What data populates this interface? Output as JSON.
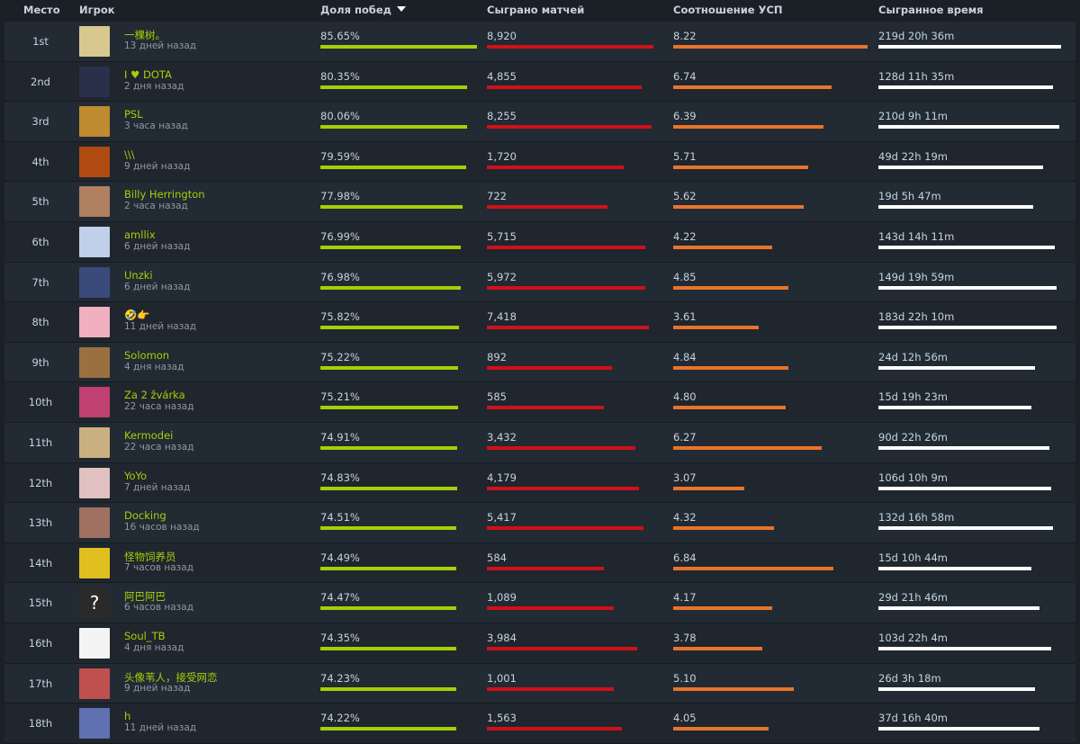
{
  "header": {
    "place": "Место",
    "player": "Игрок",
    "winrate": "Доля побед",
    "matches": "Сыграно матчей",
    "kda": "Соотношение УСП",
    "time": "Сыгранное время",
    "sort_icon": "triangle-down-icon"
  },
  "colors": {
    "win": "#a4d007",
    "matches": "#d0101a",
    "kda": "#e8742c",
    "time": "#ffffff",
    "name": "#a4d007"
  },
  "rows": [
    {
      "place": "1st",
      "name": "一棵树。",
      "seen": "13 дней назад",
      "win": "85.65%",
      "win_fill": 0.8565,
      "matches": "8,920",
      "matches_fill": 0.84,
      "kda": "8.22",
      "kda_fill": 0.98,
      "time": "219d 20h 36m",
      "time_fill": 0.93,
      "avatar": "#d8c890"
    },
    {
      "place": "2nd",
      "name": "I ♥ DOTA",
      "seen": "2 дня назад",
      "win": "80.35%",
      "win_fill": 0.8035,
      "matches": "4,855",
      "matches_fill": 0.78,
      "kda": "6.74",
      "kda_fill": 0.8,
      "time": "128d 11h 35m",
      "time_fill": 0.89,
      "avatar": "#2a2f4a"
    },
    {
      "place": "3rd",
      "name": "PSL",
      "seen": "3 часа назад",
      "win": "80.06%",
      "win_fill": 0.8006,
      "matches": "8,255",
      "matches_fill": 0.83,
      "kda": "6.39",
      "kda_fill": 0.76,
      "time": "210d 9h 11m",
      "time_fill": 0.92,
      "avatar": "#c08a30"
    },
    {
      "place": "4th",
      "name": "\\\\\\",
      "seen": "9 дней назад",
      "win": "79.59%",
      "win_fill": 0.7959,
      "matches": "1,720",
      "matches_fill": 0.69,
      "kda": "5.71",
      "kda_fill": 0.68,
      "time": "49d 22h 19m",
      "time_fill": 0.84,
      "avatar": "#b04a10"
    },
    {
      "place": "5th",
      "name": "Billy Herrington",
      "seen": "2 часа назад",
      "win": "77.98%",
      "win_fill": 0.7798,
      "matches": "722",
      "matches_fill": 0.61,
      "kda": "5.62",
      "kda_fill": 0.66,
      "time": "19d 5h 47m",
      "time_fill": 0.79,
      "avatar": "#b08060"
    },
    {
      "place": "6th",
      "name": "amllix",
      "seen": "6 дней назад",
      "win": "76.99%",
      "win_fill": 0.7699,
      "matches": "5,715",
      "matches_fill": 0.8,
      "kda": "4.22",
      "kda_fill": 0.5,
      "time": "143d 14h 11m",
      "time_fill": 0.9,
      "avatar": "#c0d0e8"
    },
    {
      "place": "7th",
      "name": "Unzki",
      "seen": "6 дней назад",
      "win": "76.98%",
      "win_fill": 0.7698,
      "matches": "5,972",
      "matches_fill": 0.8,
      "kda": "4.85",
      "kda_fill": 0.58,
      "time": "149d 19h 59m",
      "time_fill": 0.91,
      "avatar": "#3a4a7a"
    },
    {
      "place": "8th",
      "name": "🤣👉",
      "seen": "11 дней назад",
      "win": "75.82%",
      "win_fill": 0.7582,
      "matches": "7,418",
      "matches_fill": 0.82,
      "kda": "3.61",
      "kda_fill": 0.43,
      "time": "183d 22h 10m",
      "time_fill": 0.91,
      "avatar": "#f0b0c0"
    },
    {
      "place": "9th",
      "name": "Solomon",
      "seen": "4 дня назад",
      "win": "75.22%",
      "win_fill": 0.7522,
      "matches": "892",
      "matches_fill": 0.63,
      "kda": "4.84",
      "kda_fill": 0.58,
      "time": "24d 12h 56m",
      "time_fill": 0.8,
      "avatar": "#9a7040"
    },
    {
      "place": "10th",
      "name": "Za 2 žvárka",
      "seen": "22 часа назад",
      "win": "75.21%",
      "win_fill": 0.7521,
      "matches": "585",
      "matches_fill": 0.59,
      "kda": "4.80",
      "kda_fill": 0.57,
      "time": "15d 19h 23m",
      "time_fill": 0.78,
      "avatar": "#c04070"
    },
    {
      "place": "11th",
      "name": "Kermodei",
      "seen": "22 часа назад",
      "win": "74.91%",
      "win_fill": 0.7491,
      "matches": "3,432",
      "matches_fill": 0.75,
      "kda": "6.27",
      "kda_fill": 0.75,
      "time": "90d 22h 26m",
      "time_fill": 0.87,
      "avatar": "#c8b080"
    },
    {
      "place": "12th",
      "name": "YoYo",
      "seen": "7 дней назад",
      "win": "74.83%",
      "win_fill": 0.7483,
      "matches": "4,179",
      "matches_fill": 0.77,
      "kda": "3.07",
      "kda_fill": 0.36,
      "time": "106d 10h 9m",
      "time_fill": 0.88,
      "avatar": "#e0c0c0"
    },
    {
      "place": "13th",
      "name": "Docking",
      "seen": "16 часов назад",
      "win": "74.51%",
      "win_fill": 0.7451,
      "matches": "5,417",
      "matches_fill": 0.79,
      "kda": "4.32",
      "kda_fill": 0.51,
      "time": "132d 16h 58m",
      "time_fill": 0.89,
      "avatar": "#a07060"
    },
    {
      "place": "14th",
      "name": "怪物饲养员",
      "seen": "7 часов назад",
      "win": "74.49%",
      "win_fill": 0.7449,
      "matches": "584",
      "matches_fill": 0.59,
      "kda": "6.84",
      "kda_fill": 0.81,
      "time": "15d 10h 44m",
      "time_fill": 0.78,
      "avatar": "#e0c020"
    },
    {
      "place": "15th",
      "name": "阿巴阿巴",
      "seen": "6 часов назад",
      "win": "74.47%",
      "win_fill": 0.7447,
      "matches": "1,089",
      "matches_fill": 0.64,
      "kda": "4.17",
      "kda_fill": 0.5,
      "time": "29d 21h 46m",
      "time_fill": 0.82,
      "avatar": "#2a2a2a",
      "avatar_text": "?"
    },
    {
      "place": "16th",
      "name": "Soul_TB",
      "seen": "4 дня назад",
      "win": "74.35%",
      "win_fill": 0.7435,
      "matches": "3,984",
      "matches_fill": 0.76,
      "kda": "3.78",
      "kda_fill": 0.45,
      "time": "103d 22h 4m",
      "time_fill": 0.88,
      "avatar": "#f4f4f4"
    },
    {
      "place": "17th",
      "name": "头像苇人，接受网恋",
      "seen": "9 дней назад",
      "win": "74.23%",
      "win_fill": 0.7423,
      "matches": "1,001",
      "matches_fill": 0.64,
      "kda": "5.10",
      "kda_fill": 0.61,
      "time": "26d 3h 18m",
      "time_fill": 0.8,
      "avatar": "#c05050"
    },
    {
      "place": "18th",
      "name": "h",
      "seen": "11 дней назад",
      "win": "74.22%",
      "win_fill": 0.7422,
      "matches": "1,563",
      "matches_fill": 0.68,
      "kda": "4.05",
      "kda_fill": 0.48,
      "time": "37d 16h 40m",
      "time_fill": 0.82,
      "avatar": "#6070b0"
    }
  ]
}
